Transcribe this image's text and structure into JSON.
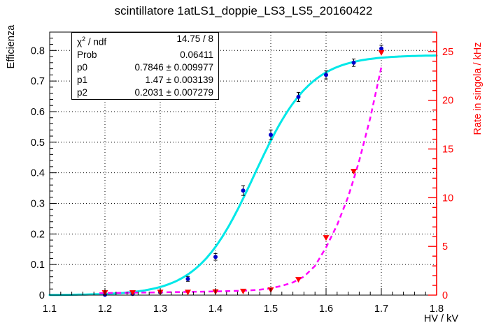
{
  "title": "scintillatore 1atLS1_doppie_LS3_LS5_20160422",
  "stats": {
    "chi": {
      "symbol": "χ",
      "sup": "2",
      "suffix": " / ndf",
      "value": "14.75 / 8"
    },
    "rows": [
      {
        "label": "Prob",
        "value": "0.06411"
      },
      {
        "label": "p0",
        "value": "0.7846 ± 0.009977"
      },
      {
        "label": "p1",
        "value": "1.47 ± 0.003139"
      },
      {
        "label": "p2",
        "value": "0.2031 ± 0.007279"
      }
    ]
  },
  "chart_data": {
    "type": "line+scatter, dual y-axis",
    "x_axis": {
      "title": "HV / kV",
      "min": 1.1,
      "max": 1.8,
      "tick_values": [
        1.1,
        1.2,
        1.3,
        1.4,
        1.5,
        1.6,
        1.7,
        1.8
      ],
      "tick_labels": [
        "1.1",
        "1.2",
        "1.3",
        "1.4",
        "1.5",
        "1.6",
        "1.7",
        "1.8"
      ],
      "minor_step": 0.02,
      "grid_values": [
        1.2,
        1.3,
        1.4,
        1.5,
        1.6,
        1.7
      ]
    },
    "y_left": {
      "title": "Efficienza",
      "min": 0,
      "max": 0.86,
      "tick_values": [
        0,
        0.1,
        0.2,
        0.3,
        0.4,
        0.5,
        0.6,
        0.7,
        0.8
      ],
      "tick_labels": [
        "0",
        "0.1",
        "0.2",
        "0.3",
        "0.4",
        "0.5",
        "0.6",
        "0.7",
        "0.8"
      ],
      "minor_step": 0.02,
      "grid_values": [
        0.1,
        0.2,
        0.3,
        0.4,
        0.5,
        0.6,
        0.7,
        0.8
      ],
      "color": "#000000"
    },
    "y_right": {
      "title": "Rate in singola / kHz",
      "min": 0,
      "max": 27,
      "tick_values": [
        0,
        5,
        10,
        15,
        20,
        25
      ],
      "tick_labels": [
        "0",
        "5",
        "10",
        "15",
        "20",
        "25"
      ],
      "minor_step": 1,
      "color": "#ff0000"
    },
    "grid": {
      "style": "dotted",
      "color": "#000000"
    },
    "series": [
      {
        "name": "efficienza-data",
        "type": "scatter",
        "axis": "left",
        "marker": "circle",
        "marker_color": "#0000cc",
        "errorbar_color": "#000000",
        "points": [
          {
            "x": 1.2,
            "y": 0.001,
            "ey": 0.002
          },
          {
            "x": 1.25,
            "y": 0.004,
            "ey": 0.002
          },
          {
            "x": 1.3,
            "y": 0.01,
            "ey": 0.004
          },
          {
            "x": 1.35,
            "y": 0.053,
            "ey": 0.008
          },
          {
            "x": 1.4,
            "y": 0.125,
            "ey": 0.011
          },
          {
            "x": 1.45,
            "y": 0.342,
            "ey": 0.016
          },
          {
            "x": 1.5,
            "y": 0.524,
            "ey": 0.016
          },
          {
            "x": 1.55,
            "y": 0.648,
            "ey": 0.015
          },
          {
            "x": 1.6,
            "y": 0.72,
            "ey": 0.013
          },
          {
            "x": 1.65,
            "y": 0.76,
            "ey": 0.012
          },
          {
            "x": 1.7,
            "y": 0.806,
            "ey": 0.011
          }
        ]
      },
      {
        "name": "efficienza-fit",
        "type": "sigmoid",
        "axis": "left",
        "color": "#00e8e8",
        "width": 3,
        "p0": 0.7846,
        "p1": 1.47,
        "k": 0.0508,
        "x_start": 1.1,
        "x_end": 1.8
      },
      {
        "name": "rate-data",
        "type": "scatter",
        "axis": "right",
        "marker": "triangle-down",
        "marker_color": "#ff0000",
        "points": [
          {
            "x": 1.2,
            "y": 0.25
          },
          {
            "x": 1.25,
            "y": 0.25
          },
          {
            "x": 1.3,
            "y": 0.3
          },
          {
            "x": 1.35,
            "y": 0.3
          },
          {
            "x": 1.4,
            "y": 0.35
          },
          {
            "x": 1.45,
            "y": 0.4
          },
          {
            "x": 1.5,
            "y": 0.55
          },
          {
            "x": 1.55,
            "y": 1.6
          },
          {
            "x": 1.6,
            "y": 5.9
          },
          {
            "x": 1.65,
            "y": 12.7
          },
          {
            "x": 1.7,
            "y": 24.9
          }
        ]
      },
      {
        "name": "rate-fit",
        "type": "dashed-curve",
        "axis": "right",
        "color": "#ff00ff",
        "width": 2.5,
        "dash": "7 5",
        "control_points": [
          {
            "x": 1.19,
            "y": 0.2
          },
          {
            "x": 1.25,
            "y": 0.25
          },
          {
            "x": 1.3,
            "y": 0.29
          },
          {
            "x": 1.35,
            "y": 0.33
          },
          {
            "x": 1.4,
            "y": 0.38
          },
          {
            "x": 1.45,
            "y": 0.45
          },
          {
            "x": 1.48,
            "y": 0.55
          },
          {
            "x": 1.5,
            "y": 0.7
          },
          {
            "x": 1.52,
            "y": 0.95
          },
          {
            "x": 1.54,
            "y": 1.3
          },
          {
            "x": 1.56,
            "y": 1.9
          },
          {
            "x": 1.58,
            "y": 3.0
          },
          {
            "x": 1.6,
            "y": 4.9
          },
          {
            "x": 1.62,
            "y": 7.2
          },
          {
            "x": 1.64,
            "y": 10.1
          },
          {
            "x": 1.65,
            "y": 11.9
          },
          {
            "x": 1.66,
            "y": 13.8
          },
          {
            "x": 1.68,
            "y": 18.2
          },
          {
            "x": 1.7,
            "y": 23.4
          }
        ]
      }
    ]
  },
  "colors": {
    "frame": "#000000",
    "right_axis": "#ff0000",
    "fit_cyan": "#00e8e8",
    "fit_magenta": "#ff00ff",
    "marker_blue": "#0000cc",
    "marker_red": "#ff0000",
    "background": "#ffffff"
  }
}
